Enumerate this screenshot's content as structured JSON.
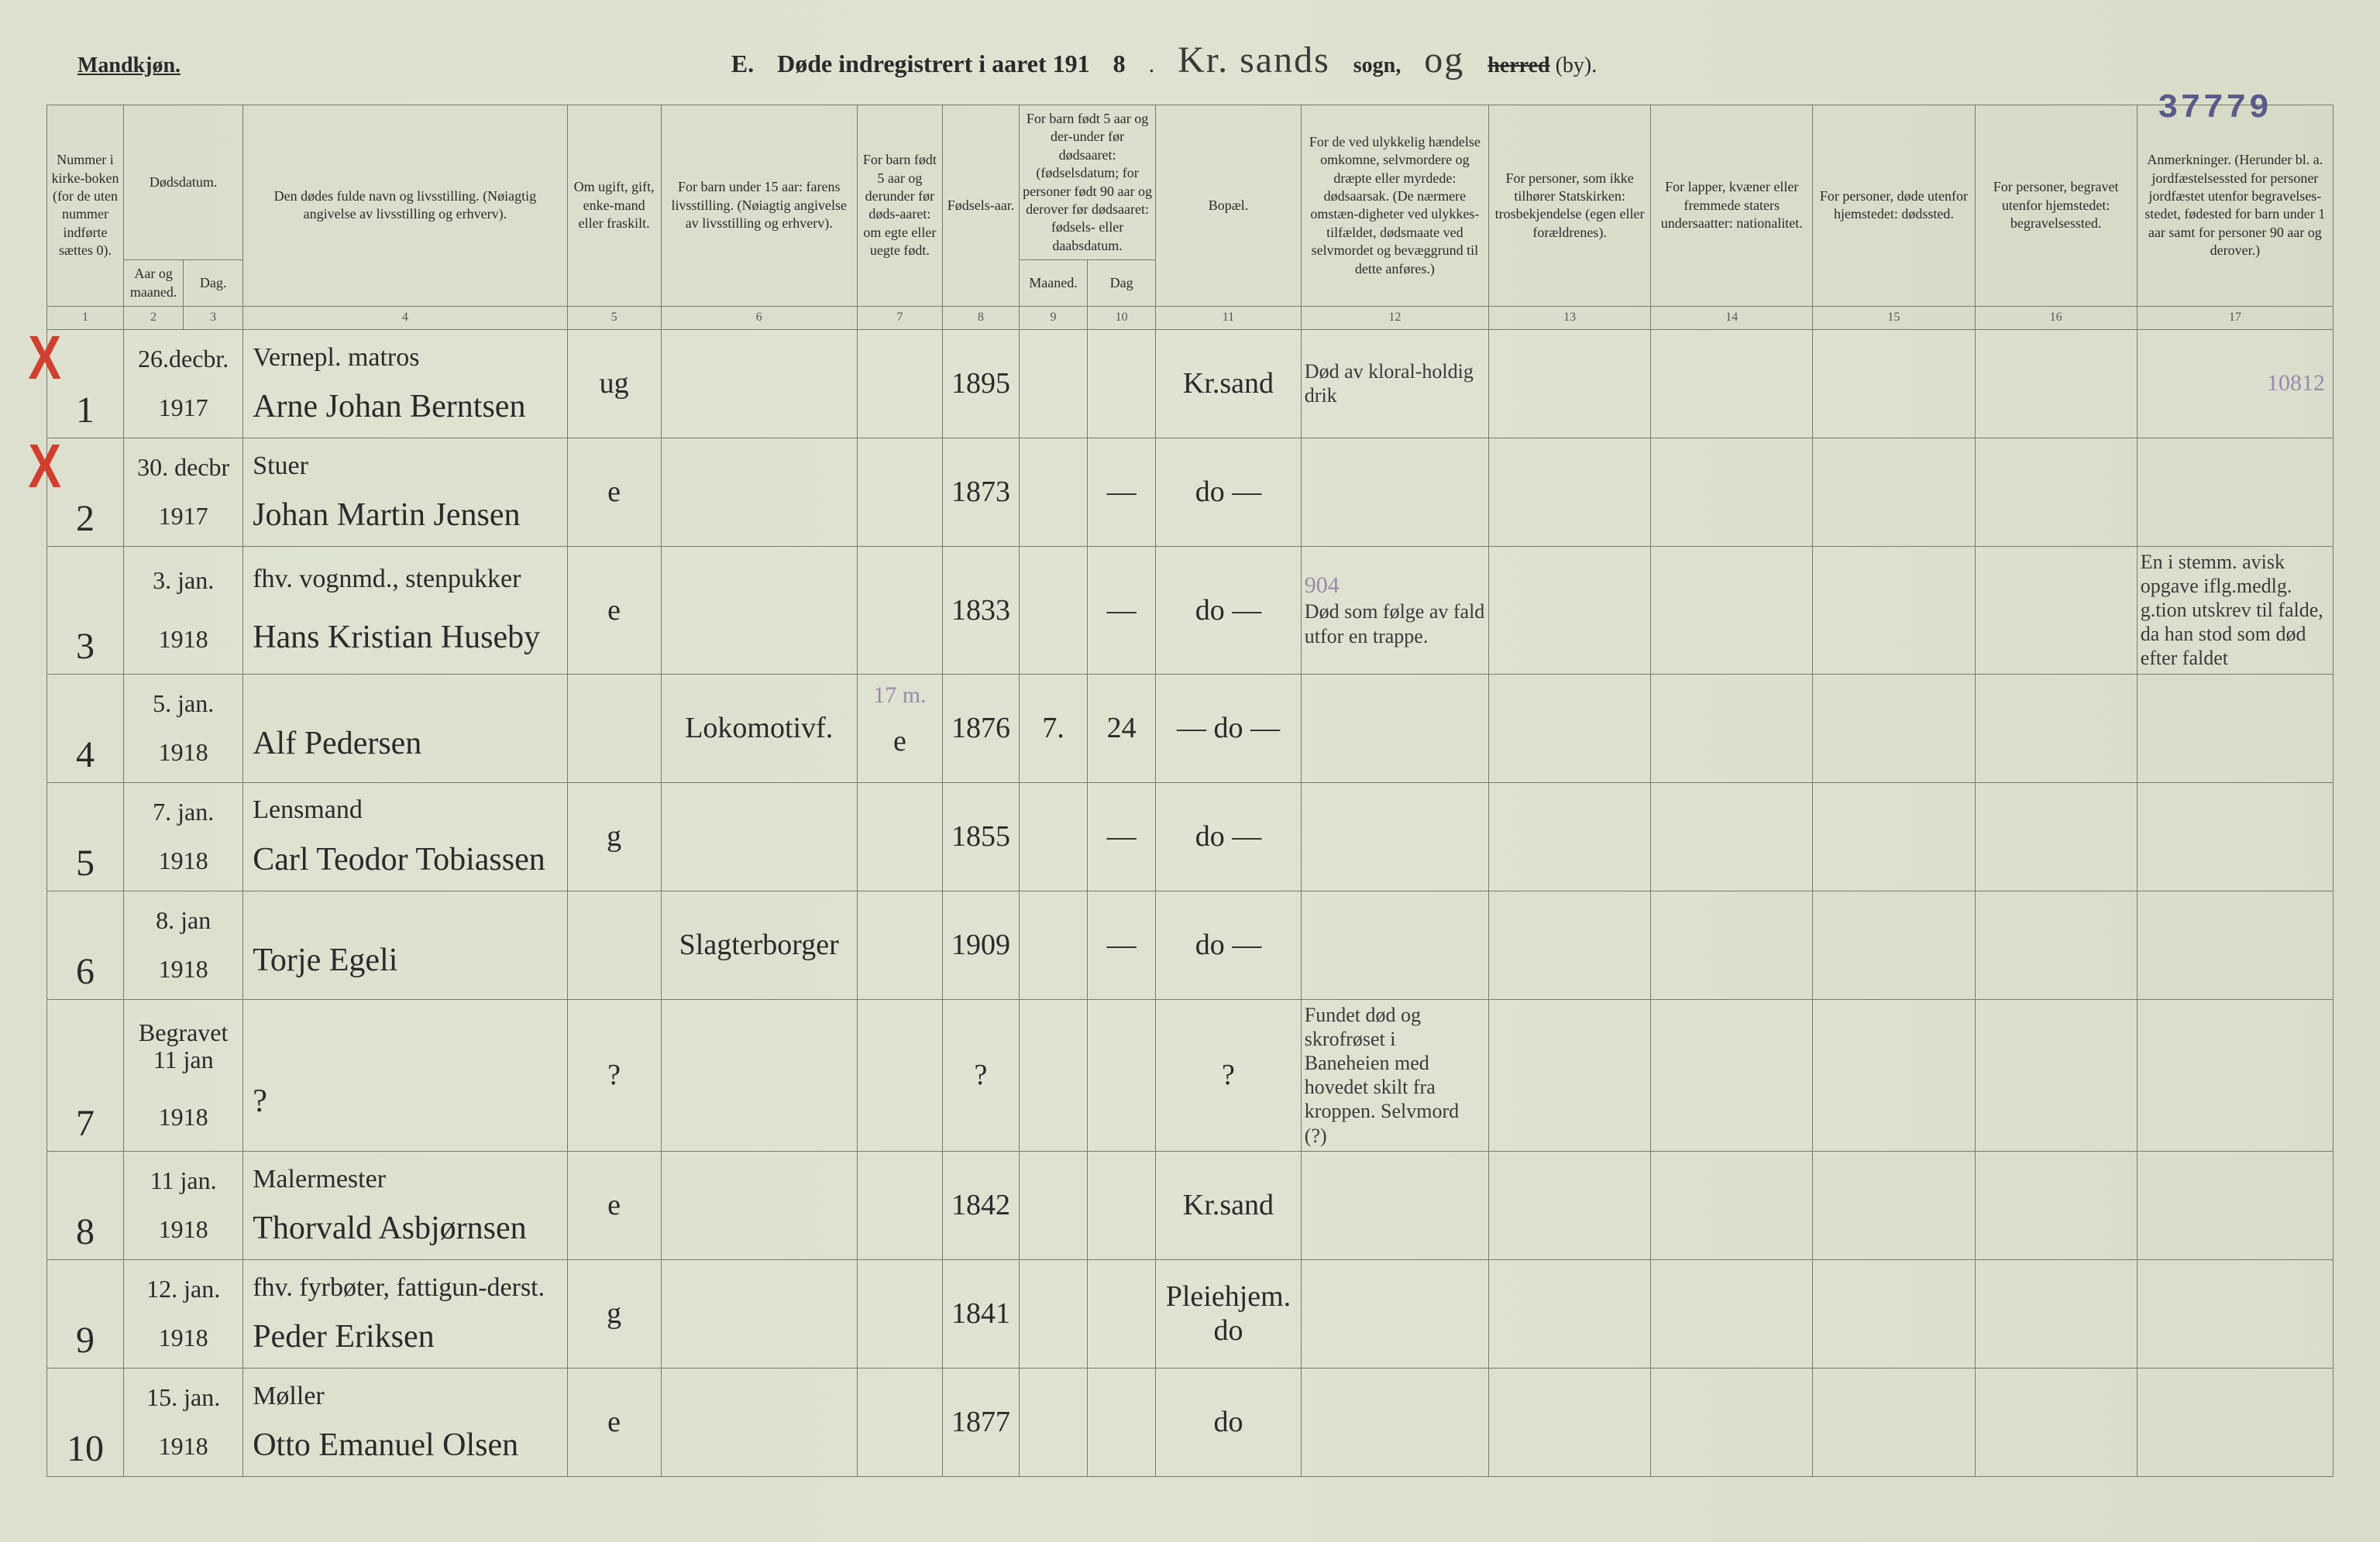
{
  "header": {
    "gender": "Mandkjøn.",
    "title_prefix": "E.",
    "title_main": "Døde indregistrert i aaret 191",
    "title_year_digit": "8",
    "parish_cursive": "Kr. sands",
    "sogn_word": "sogn,",
    "og_cursive": "og",
    "herred_struck": "herred",
    "by_word": "(by).",
    "stamp": "37779"
  },
  "columns": {
    "c1": "Nummer i kirke-boken (for de uten nummer indførte sættes 0).",
    "c2_3_group": "Dødsdatum.",
    "c2": "Aar og maaned.",
    "c3": "Dag.",
    "c4": "Den dødes fulde navn og livsstilling. (Nøiagtig angivelse av livsstilling og erhverv).",
    "c5": "Om ugift, gift, enke-mand eller fraskilt.",
    "c6": "For barn under 15 aar: farens livsstilling. (Nøiagtig angivelse av livsstilling og erhverv).",
    "c7": "For barn født 5 aar og derunder før døds-aaret: om egte eller uegte født.",
    "c8": "Fødsels-aar.",
    "c9_10_group": "For barn født 5 aar og der-under før dødsaaret: (fødselsdatum; for personer født 90 aar og derover før dødsaaret: fødsels- eller daabsdatum.",
    "c9": "Maaned.",
    "c10": "Dag",
    "c11": "Bopæl.",
    "c12": "For de ved ulykkelig hændelse omkomne, selvmordere og dræpte eller myrdede: dødsaarsak. (De nærmere omstæn-digheter ved ulykkes-tilfældet, dødsmaate ved selvmordet og bevæggrund til dette anføres.)",
    "c13": "For personer, som ikke tilhører Statskirken: trosbekjendelse (egen eller forældrenes).",
    "c14": "For lapper, kvæner eller fremmede staters undersaatter: nationalitet.",
    "c15": "For personer, døde utenfor hjemstedet: dødssted.",
    "c16": "For personer, begravet utenfor hjemstedet: begravelsessted.",
    "c17": "Anmerkninger. (Herunder bl. a. jordfæstelsessted for personer jordfæstet utenfor begravelses-stedet, fødested for barn under 1 aar samt for personer 90 aar og derover.)"
  },
  "colnums": [
    "1",
    "2",
    "3",
    "4",
    "5",
    "6",
    "7",
    "8",
    "9",
    "10",
    "11",
    "12",
    "13",
    "14",
    "15",
    "16",
    "17"
  ],
  "rows": [
    {
      "num": "1",
      "date_top": "26.decbr.",
      "year": "1917",
      "name_top": "Vernepl. matros",
      "name": "Arne Johan Berntsen",
      "civil": "ug",
      "c6": "",
      "c7": "",
      "fyear": "1895",
      "c9": "",
      "c10": "",
      "bopael": "Kr.sand",
      "cause": "Død av kloral-holdig drik",
      "c17": "10812",
      "redx": true
    },
    {
      "num": "2",
      "date_top": "30. decbr",
      "year": "1917",
      "name_top": "Stuer",
      "name": "Johan Martin Jensen",
      "civil": "e",
      "c6": "",
      "c7": "",
      "fyear": "1873",
      "c9": "",
      "c10": "—",
      "bopael": "do —",
      "cause": "",
      "c17": "",
      "redx": true
    },
    {
      "num": "3",
      "date_top": "3. jan.",
      "year": "1918",
      "name_top": "fhv. vognmd., stenpukker",
      "name": "Hans Kristian Huseby",
      "civil": "e",
      "c6": "",
      "c7": "",
      "fyear": "1833",
      "c9": "",
      "c10": "—",
      "bopael": "do —",
      "cause": "Død som følge av fald utfor en trappe.",
      "c17": "En i stemm. avisk opgave iflg.medlg. g.tion utskrev til falde, da han stod som død efter faldet",
      "redx": false,
      "pencil": "904"
    },
    {
      "num": "4",
      "date_top": "5. jan.",
      "year": "1918",
      "name_top": "",
      "name": "Alf Pedersen",
      "civil": "",
      "c6": "Lokomotivf.",
      "c7": "e",
      "fyear": "1876",
      "c9": "7.",
      "c10": "24",
      "bopael": "— do —",
      "cause": "",
      "c17": "",
      "redx": false,
      "pencil_above": "17 m."
    },
    {
      "num": "5",
      "date_top": "7. jan.",
      "year": "1918",
      "name_top": "Lensmand",
      "name": "Carl Teodor Tobiassen",
      "civil": "g",
      "c6": "",
      "c7": "",
      "fyear": "1855",
      "c9": "",
      "c10": "—",
      "bopael": "do —",
      "cause": "",
      "c17": "",
      "redx": false
    },
    {
      "num": "6",
      "date_top": "8. jan",
      "year": "1918",
      "name_top": "",
      "name": "Torje Egeli",
      "civil": "",
      "c6": "Slagterborger",
      "c7": "",
      "fyear": "1909",
      "c9": "",
      "c10": "—",
      "bopael": "do —",
      "cause": "",
      "c17": "",
      "redx": false
    },
    {
      "num": "7",
      "date_top": "Begravet\n11 jan",
      "year": "1918",
      "name_top": "",
      "name": "?",
      "civil": "?",
      "c6": "",
      "c7": "",
      "fyear": "?",
      "c9": "",
      "c10": "",
      "bopael": "?",
      "cause": "Fundet død og skrofrøset i Baneheien med hovedet skilt fra kroppen. Selvmord (?)",
      "c17": "",
      "redx": false
    },
    {
      "num": "8",
      "date_top": "11 jan.",
      "year": "1918",
      "name_top": "Malermester",
      "name": "Thorvald Asbjørnsen",
      "civil": "e",
      "c6": "",
      "c7": "",
      "fyear": "1842",
      "c9": "",
      "c10": "",
      "bopael": "Kr.sand",
      "cause": "",
      "c17": "",
      "redx": false
    },
    {
      "num": "9",
      "date_top": "12. jan.",
      "year": "1918",
      "name_top": "fhv. fyrbøter, fattigun-derst.",
      "name": "Peder Eriksen",
      "civil": "g",
      "c6": "",
      "c7": "",
      "fyear": "1841",
      "c9": "",
      "c10": "",
      "bopael": "Pleiehjem.\ndo",
      "cause": "",
      "c17": "",
      "redx": false
    },
    {
      "num": "10",
      "date_top": "15. jan.",
      "year": "1918",
      "name_top": "Møller",
      "name": "Otto Emanuel Olsen",
      "civil": "e",
      "c6": "",
      "c7": "",
      "fyear": "1877",
      "c9": "",
      "c10": "",
      "bopael": "do",
      "cause": "",
      "c17": "",
      "redx": false
    }
  ]
}
